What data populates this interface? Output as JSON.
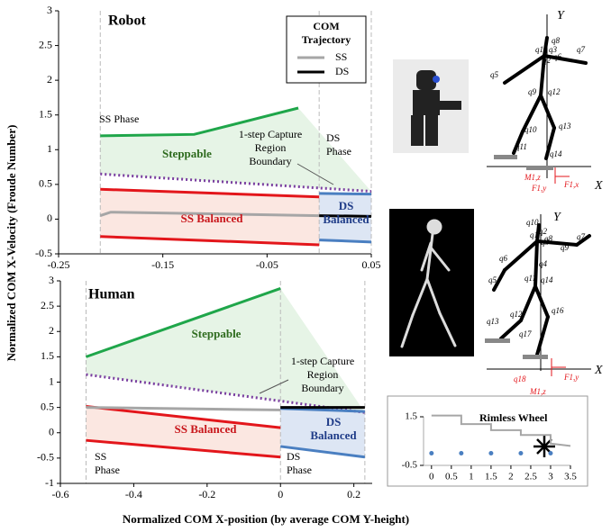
{
  "figure": {
    "y_axis_label": "Normalized COM X-Velocity (Froude Number)",
    "x_axis_label": "Normalized COM X-position (by average COM Y-height)"
  },
  "chart_data": [
    {
      "type": "line",
      "xlim": [
        -0.25,
        0.05
      ],
      "ylim": [
        -0.5,
        3
      ],
      "xticks": [
        -0.25,
        -0.15,
        -0.05,
        0.05
      ],
      "yticks": [
        -0.5,
        0,
        0.5,
        1,
        1.5,
        2,
        2.5,
        3
      ],
      "legend_title": [
        "COM",
        "Trajectory"
      ],
      "series": [
        {
          "color": "#1fa64a",
          "x": [
            -0.21,
            -0.12,
            -0.02
          ],
          "values": [
            1.2,
            1.22,
            1.6
          ]
        },
        {
          "color": "#7a3fa0",
          "dash": true,
          "x": [
            -0.21,
            0.05
          ],
          "values": [
            0.65,
            0.4
          ]
        },
        {
          "color": "#e3161b",
          "x": [
            -0.21,
            0
          ],
          "values": [
            0.43,
            0.32
          ]
        },
        {
          "color": "#e3161b",
          "x": [
            -0.21,
            0
          ],
          "values": [
            -0.25,
            -0.37
          ]
        },
        {
          "name": "SS",
          "color": "#a6a6a6",
          "x": [
            -0.21,
            -0.2,
            0
          ],
          "values": [
            0.05,
            0.1,
            0.05
          ]
        },
        {
          "color": "#4a7fc1",
          "x": [
            0,
            0.05
          ],
          "values": [
            0.37,
            0.36
          ]
        },
        {
          "color": "#4a7fc1",
          "x": [
            0,
            0.05
          ],
          "values": [
            -0.3,
            -0.33
          ]
        },
        {
          "name": "DS",
          "color": "#000000",
          "x": [
            0,
            0.05
          ],
          "values": [
            0.05,
            0.04
          ]
        }
      ],
      "annotations": [
        "Robot",
        "SS Phase",
        "Steppable",
        [
          "1-step Capture",
          "Region",
          "Boundary"
        ],
        [
          "DS",
          "Phase"
        ],
        "SS Balanced",
        [
          "DS",
          "Balanced"
        ]
      ]
    },
    {
      "type": "line",
      "xlim": [
        -0.6,
        0.25
      ],
      "ylim": [
        -1,
        3
      ],
      "xticks": [
        -0.6,
        -0.4,
        -0.2,
        0,
        0.2
      ],
      "yticks": [
        -1,
        -0.5,
        0,
        0.5,
        1,
        1.5,
        2,
        2.5,
        3
      ],
      "series": [
        {
          "color": "#1fa64a",
          "x": [
            -0.53,
            0
          ],
          "values": [
            1.5,
            2.85
          ]
        },
        {
          "color": "#7a3fa0",
          "dash": true,
          "x": [
            -0.53,
            0.23
          ],
          "values": [
            1.15,
            0.4
          ]
        },
        {
          "color": "#e3161b",
          "x": [
            -0.53,
            0
          ],
          "values": [
            0.52,
            0.1
          ]
        },
        {
          "color": "#e3161b",
          "x": [
            -0.53,
            0
          ],
          "values": [
            -0.15,
            -0.48
          ]
        },
        {
          "color": "#a6a6a6",
          "x": [
            -0.53,
            0
          ],
          "values": [
            0.5,
            0.45
          ]
        },
        {
          "color": "#4a7fc1",
          "x": [
            0,
            0.23
          ],
          "values": [
            0.48,
            0.42
          ]
        },
        {
          "color": "#4a7fc1",
          "x": [
            0,
            0.23
          ],
          "values": [
            -0.27,
            -0.48
          ]
        },
        {
          "color": "#000000",
          "x": [
            0,
            0.23
          ],
          "values": [
            0.5,
            0.5
          ]
        }
      ],
      "annotations": [
        "Human",
        "Steppable",
        [
          "1-step Capture",
          "Region",
          "Boundary"
        ],
        "SS Balanced",
        [
          "DS",
          "Balanced"
        ],
        [
          "SS",
          "Phase"
        ],
        [
          "DS",
          "Phase"
        ]
      ]
    },
    {
      "type": "line",
      "xlim": [
        -0.2,
        3.5
      ],
      "ylim": [
        -0.5,
        1.5
      ],
      "xticks": [
        0,
        0.5,
        1,
        1.5,
        2,
        2.5,
        3,
        3.5
      ],
      "yticks": [
        -0.5,
        1.5
      ],
      "series": [
        {
          "color": "#a6a6a6",
          "x": [
            0,
            0.75,
            0.75,
            1.5,
            1.5,
            2.25,
            2.25,
            3,
            3,
            3.5
          ],
          "values": [
            1.55,
            1.55,
            1.2,
            1.2,
            0.95,
            0.95,
            0.75,
            0.75,
            0.4,
            0.3
          ]
        },
        {
          "color": "#4a7fc1",
          "markers": true,
          "x": [
            0,
            0.75,
            1.5,
            2.25,
            3
          ],
          "values": [
            0,
            0,
            0,
            0,
            0
          ]
        }
      ],
      "annotations": [
        "Rimless Wheel"
      ]
    }
  ],
  "diagrams": {
    "robot": [
      "Y",
      "X",
      "q1",
      "q2",
      "q3",
      "q5",
      "q6",
      "q7",
      "q8",
      "q9",
      "q10",
      "q11",
      "q12",
      "q13",
      "q14",
      "M1,z",
      "F1,y",
      "F1,x"
    ],
    "human": [
      "Y",
      "X",
      "q1",
      "q2",
      "q3",
      "q4",
      "q5",
      "q6",
      "q7",
      "q8",
      "q9",
      "q10",
      "q11",
      "q12",
      "q13",
      "q14",
      "q16",
      "q17",
      "q18",
      "M1,z",
      "F1,y",
      "F1,x"
    ]
  }
}
